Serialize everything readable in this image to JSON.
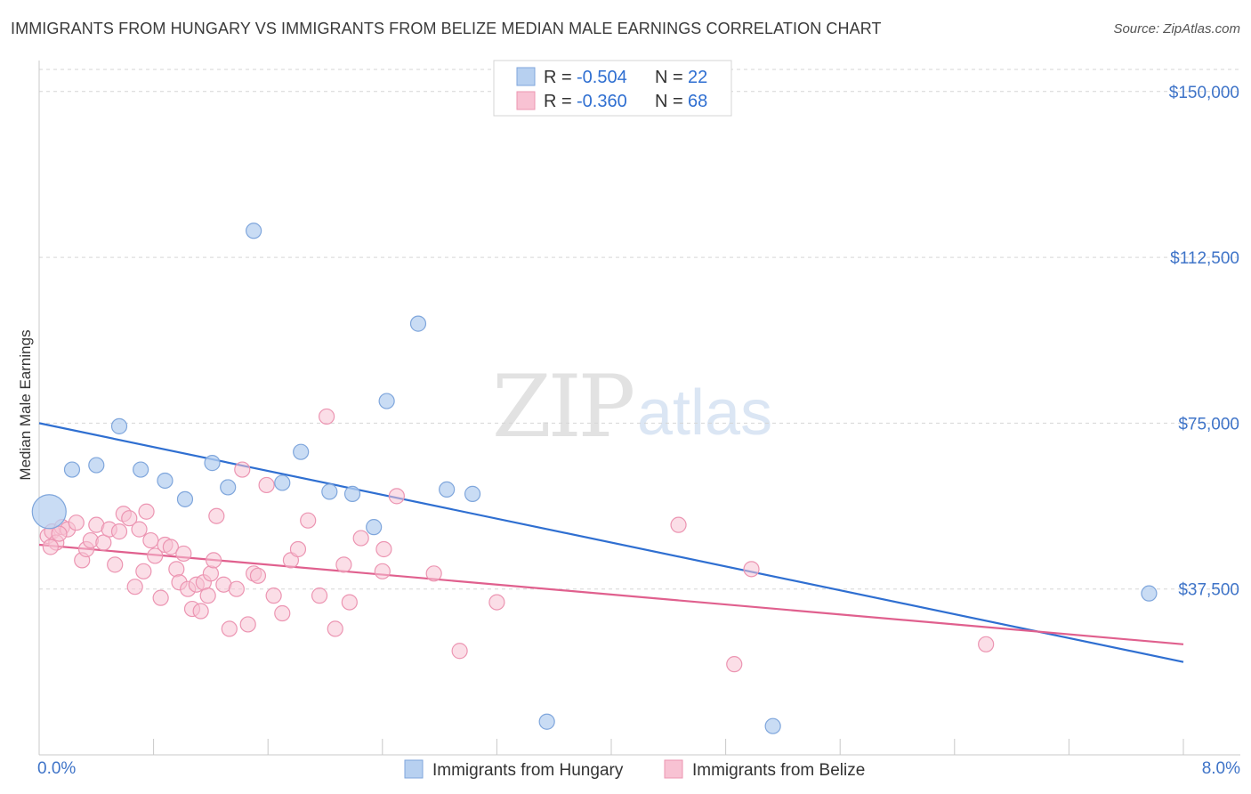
{
  "header": {
    "title": "IMMIGRANTS FROM HUNGARY VS IMMIGRANTS FROM BELIZE MEDIAN MALE EARNINGS CORRELATION CHART",
    "source": "Source: ZipAtlas.com"
  },
  "legend_box": {
    "rows": [
      {
        "r_label": "R =",
        "r_value": "-0.504",
        "n_label": "N =",
        "n_value": "22"
      },
      {
        "r_label": "R =",
        "r_value": "-0.360",
        "n_label": "N =",
        "n_value": "68"
      }
    ]
  },
  "watermark": {
    "part1": "ZIP",
    "part2": "atlas"
  },
  "colors": {
    "hungary_fill": "#b7d0f0",
    "hungary_stroke": "#7fa6dc",
    "hungary_line": "#2f6fd1",
    "belize_fill": "#f8c2d3",
    "belize_stroke": "#ec95b2",
    "belize_line": "#e0608e",
    "tick_text": "#3f74c8",
    "grid": "#d6d6d6"
  },
  "chart_data": {
    "type": "scatter",
    "title": "IMMIGRANTS FROM HUNGARY VS IMMIGRANTS FROM BELIZE MEDIAN MALE EARNINGS CORRELATION CHART",
    "xlabel": "",
    "ylabel": "Median Male Earnings",
    "xlim": [
      0,
      8
    ],
    "ylim": [
      0,
      157000
    ],
    "x_tick_labels": [
      "0.0%",
      "8.0%"
    ],
    "y_ticks": [
      37500,
      75000,
      112500,
      150000
    ],
    "y_tick_labels": [
      "$37,500",
      "$75,000",
      "$112,500",
      "$150,000"
    ],
    "grid": "horizontal dashed",
    "legend": "top-center",
    "series": [
      {
        "name": "Immigrants from Hungary",
        "color": "#7fa6dc",
        "r": -0.504,
        "n": 22,
        "points": [
          {
            "x": 0.07,
            "y": 55000,
            "big": true
          },
          {
            "x": 0.23,
            "y": 64500
          },
          {
            "x": 0.4,
            "y": 65500
          },
          {
            "x": 0.56,
            "y": 74300
          },
          {
            "x": 0.71,
            "y": 64500
          },
          {
            "x": 0.88,
            "y": 62000
          },
          {
            "x": 1.02,
            "y": 57800
          },
          {
            "x": 1.21,
            "y": 66000
          },
          {
            "x": 1.32,
            "y": 60500
          },
          {
            "x": 1.5,
            "y": 118500
          },
          {
            "x": 1.7,
            "y": 61500
          },
          {
            "x": 1.83,
            "y": 68500
          },
          {
            "x": 2.03,
            "y": 59500
          },
          {
            "x": 2.19,
            "y": 59000
          },
          {
            "x": 2.34,
            "y": 51500
          },
          {
            "x": 2.43,
            "y": 80000
          },
          {
            "x": 2.65,
            "y": 97500
          },
          {
            "x": 2.85,
            "y": 60000
          },
          {
            "x": 3.03,
            "y": 59000
          },
          {
            "x": 3.55,
            "y": 7500
          },
          {
            "x": 5.13,
            "y": 6500
          },
          {
            "x": 7.76,
            "y": 36500
          }
        ],
        "trend": {
          "x0": 0.0,
          "y0": 75000,
          "x1": 8.0,
          "y1": 21000
        }
      },
      {
        "name": "Immigrants from Belize",
        "color": "#ec95b2",
        "r": -0.36,
        "n": 68,
        "points": [
          {
            "x": 0.06,
            "y": 49500
          },
          {
            "x": 0.09,
            "y": 50500
          },
          {
            "x": 0.12,
            "y": 48000
          },
          {
            "x": 0.16,
            "y": 51500
          },
          {
            "x": 0.2,
            "y": 51000
          },
          {
            "x": 0.26,
            "y": 52500
          },
          {
            "x": 0.3,
            "y": 44000
          },
          {
            "x": 0.33,
            "y": 46500
          },
          {
            "x": 0.36,
            "y": 48500
          },
          {
            "x": 0.4,
            "y": 52000
          },
          {
            "x": 0.45,
            "y": 48000
          },
          {
            "x": 0.49,
            "y": 51000
          },
          {
            "x": 0.53,
            "y": 43000
          },
          {
            "x": 0.56,
            "y": 50500
          },
          {
            "x": 0.59,
            "y": 54500
          },
          {
            "x": 0.63,
            "y": 53500
          },
          {
            "x": 0.67,
            "y": 38000
          },
          {
            "x": 0.7,
            "y": 51000
          },
          {
            "x": 0.73,
            "y": 41500
          },
          {
            "x": 0.75,
            "y": 55000
          },
          {
            "x": 0.78,
            "y": 48500
          },
          {
            "x": 0.81,
            "y": 45000
          },
          {
            "x": 0.85,
            "y": 35500
          },
          {
            "x": 0.88,
            "y": 47500
          },
          {
            "x": 0.92,
            "y": 47000
          },
          {
            "x": 0.96,
            "y": 42000
          },
          {
            "x": 0.98,
            "y": 39000
          },
          {
            "x": 1.01,
            "y": 45500
          },
          {
            "x": 1.04,
            "y": 37500
          },
          {
            "x": 1.07,
            "y": 33000
          },
          {
            "x": 1.1,
            "y": 38500
          },
          {
            "x": 1.13,
            "y": 32500
          },
          {
            "x": 1.15,
            "y": 39000
          },
          {
            "x": 1.18,
            "y": 36000
          },
          {
            "x": 1.2,
            "y": 41000
          },
          {
            "x": 1.22,
            "y": 44000
          },
          {
            "x": 1.24,
            "y": 54000
          },
          {
            "x": 1.29,
            "y": 38500
          },
          {
            "x": 1.33,
            "y": 28500
          },
          {
            "x": 1.38,
            "y": 37500
          },
          {
            "x": 1.42,
            "y": 64500
          },
          {
            "x": 1.46,
            "y": 29500
          },
          {
            "x": 1.5,
            "y": 41000
          },
          {
            "x": 1.53,
            "y": 40500
          },
          {
            "x": 1.59,
            "y": 61000
          },
          {
            "x": 1.64,
            "y": 36000
          },
          {
            "x": 1.7,
            "y": 32000
          },
          {
            "x": 1.76,
            "y": 44000
          },
          {
            "x": 1.81,
            "y": 46500
          },
          {
            "x": 1.88,
            "y": 53000
          },
          {
            "x": 1.96,
            "y": 36000
          },
          {
            "x": 2.01,
            "y": 76500
          },
          {
            "x": 2.07,
            "y": 28500
          },
          {
            "x": 2.13,
            "y": 43000
          },
          {
            "x": 2.17,
            "y": 34500
          },
          {
            "x": 2.25,
            "y": 49000
          },
          {
            "x": 2.4,
            "y": 41500
          },
          {
            "x": 2.41,
            "y": 46500
          },
          {
            "x": 2.5,
            "y": 58500
          },
          {
            "x": 2.76,
            "y": 41000
          },
          {
            "x": 2.94,
            "y": 23500
          },
          {
            "x": 3.2,
            "y": 34500
          },
          {
            "x": 4.47,
            "y": 52000
          },
          {
            "x": 4.86,
            "y": 20500
          },
          {
            "x": 4.98,
            "y": 42000
          },
          {
            "x": 6.62,
            "y": 25000
          },
          {
            "x": 0.08,
            "y": 47000
          },
          {
            "x": 0.14,
            "y": 50000
          }
        ],
        "trend": {
          "x0": 0.0,
          "y0": 47500,
          "x1": 8.0,
          "y1": 25000
        }
      }
    ]
  }
}
